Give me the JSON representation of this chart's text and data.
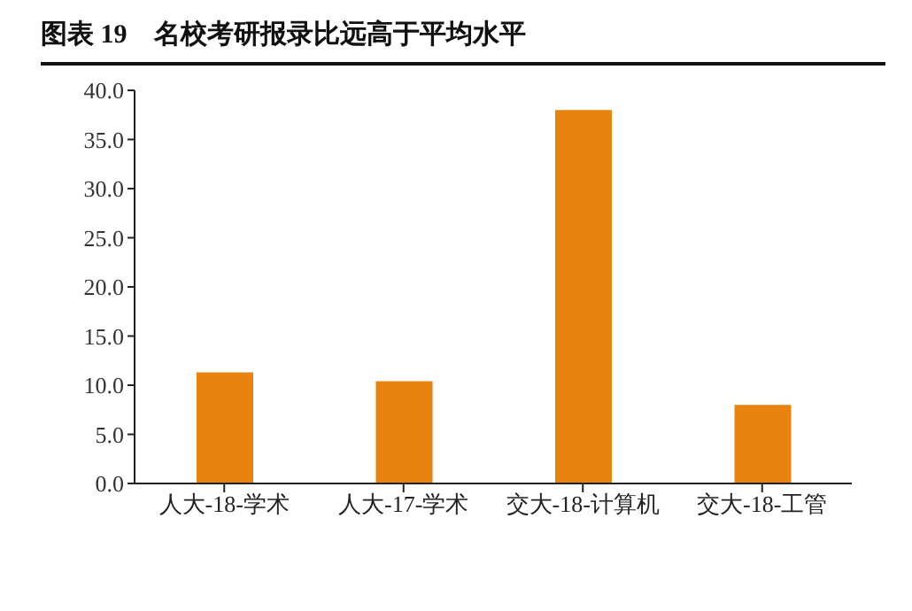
{
  "chart_data": {
    "type": "bar",
    "title": "图表 19　名校考研报录比远高于平均水平",
    "categories": [
      "人大-18-学术",
      "人大-17-学术",
      "交大-18-计算机",
      "交大-18-工管"
    ],
    "values": [
      11.3,
      10.4,
      38.0,
      8.0
    ],
    "color": "#e8830f",
    "ylim": [
      0,
      40
    ],
    "yticks": [
      {
        "value": 0,
        "label": "0.0"
      },
      {
        "value": 5,
        "label": "5.0"
      },
      {
        "value": 10,
        "label": "10.0"
      },
      {
        "value": 15,
        "label": "15.0"
      },
      {
        "value": 20,
        "label": "20.0"
      },
      {
        "value": 25,
        "label": "25.0"
      },
      {
        "value": 30,
        "label": "30.0"
      },
      {
        "value": 35,
        "label": "35.0"
      },
      {
        "value": 40,
        "label": "40.0"
      }
    ],
    "grid": false,
    "legend": false
  }
}
